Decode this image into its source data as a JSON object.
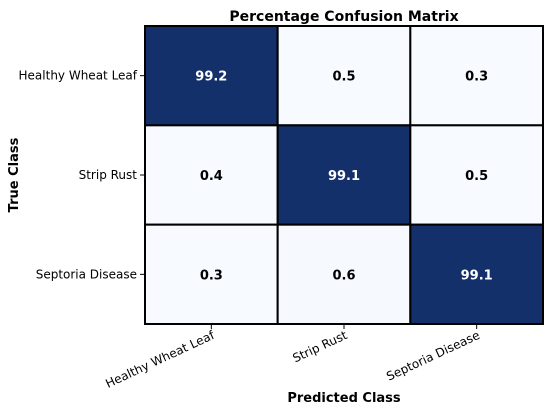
{
  "chart_data": {
    "type": "heatmap",
    "title": "Percentage Confusion Matrix",
    "xlabel": "Predicted Class",
    "ylabel": "True Class",
    "x_categories": [
      "Healthy Wheat Leaf",
      "Strip Rust",
      "Septoria Disease"
    ],
    "y_categories": [
      "Healthy Wheat Leaf",
      "Strip Rust",
      "Septoria Disease"
    ],
    "values": [
      [
        99.2,
        0.5,
        0.3
      ],
      [
        0.4,
        99.1,
        0.5
      ],
      [
        0.3,
        0.6,
        99.1
      ]
    ],
    "value_labels": [
      [
        "99.2",
        "0.5",
        "0.3"
      ],
      [
        "0.4",
        "99.1",
        "0.5"
      ],
      [
        "0.3",
        "0.6",
        "99.1"
      ]
    ],
    "colormap": "Blues",
    "colors": {
      "high": "#13306a",
      "low": "#f7fbff",
      "grid": "#000000",
      "text_on_dark": "#ffffff",
      "text_on_light": "#000000"
    }
  }
}
